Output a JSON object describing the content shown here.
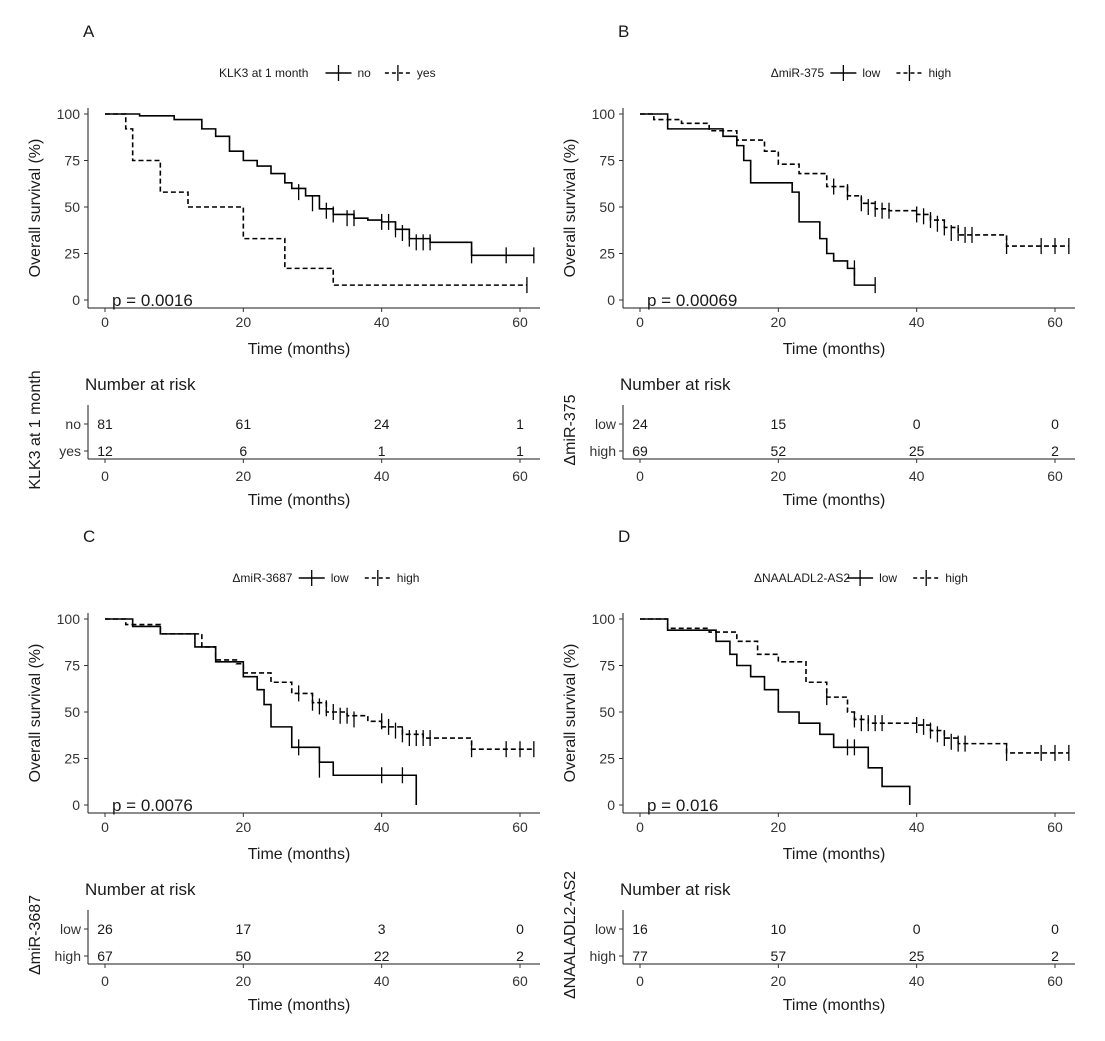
{
  "chart_data": [
    {
      "type": "line",
      "panel": "A",
      "legend_title": "KLK3 at 1 month",
      "strata_title": "KLK3 at 1 month",
      "xlabel": "Time (months)",
      "ylabel": "Overall survival (%)",
      "xlim": [
        0,
        62
      ],
      "ylim": [
        0,
        100
      ],
      "xticks": [
        0,
        20,
        40,
        60
      ],
      "yticks": [
        0,
        25,
        50,
        75,
        100
      ],
      "pvalue": "p = 0.0016",
      "risk_title": "Number at risk",
      "risk_xlabel": "Time (months)",
      "series": [
        {
          "name": "no",
          "dash": "solid",
          "x": [
            0,
            5,
            10,
            14,
            16,
            18,
            20,
            22,
            24,
            26,
            27,
            29,
            31,
            33,
            36,
            38,
            40,
            42,
            44,
            47,
            53,
            62
          ],
          "y": [
            100,
            99,
            97,
            92,
            88,
            80,
            75,
            72,
            68,
            63,
            60,
            56,
            49,
            46,
            44,
            43,
            42,
            38,
            33,
            31,
            24,
            24
          ],
          "censor_x": [
            28,
            30,
            32,
            33,
            35,
            36,
            40,
            41,
            42,
            43,
            44,
            45,
            46,
            47,
            53,
            58,
            62
          ],
          "censor_y": [
            58,
            52,
            48,
            46,
            44,
            44,
            42,
            42,
            38,
            36,
            33,
            31,
            31,
            31,
            24,
            24,
            24
          ]
        },
        {
          "name": "yes",
          "dash": "dashed",
          "x": [
            0,
            3,
            4,
            8,
            12,
            20,
            26,
            33,
            61
          ],
          "y": [
            100,
            92,
            75,
            58,
            50,
            33,
            17,
            8,
            8
          ],
          "censor_x": [
            61
          ],
          "censor_y": [
            8
          ]
        }
      ],
      "risk_rows": [
        {
          "label": "no",
          "values": [
            81,
            61,
            24,
            1
          ]
        },
        {
          "label": "yes",
          "values": [
            12,
            6,
            1,
            1
          ]
        }
      ]
    },
    {
      "type": "line",
      "panel": "B",
      "legend_title": "ΔmiR-375",
      "strata_title": "ΔmiR-375",
      "xlabel": "Time (months)",
      "ylabel": "Overall survival (%)",
      "xlim": [
        0,
        62
      ],
      "ylim": [
        0,
        100
      ],
      "xticks": [
        0,
        20,
        40,
        60
      ],
      "yticks": [
        0,
        25,
        50,
        75,
        100
      ],
      "pvalue": "p = 0.00069",
      "risk_title": "Number at risk",
      "risk_xlabel": "Time (months)",
      "series": [
        {
          "name": "low",
          "dash": "solid",
          "x": [
            0,
            4,
            12,
            14,
            15,
            16,
            22,
            23,
            26,
            27,
            28,
            30,
            31,
            34
          ],
          "y": [
            100,
            92,
            88,
            83,
            75,
            63,
            58,
            42,
            33,
            25,
            21,
            17,
            8,
            8
          ],
          "censor_x": [
            31,
            34
          ],
          "censor_y": [
            17,
            8
          ]
        },
        {
          "name": "high",
          "dash": "dashed",
          "x": [
            0,
            2,
            6,
            10,
            14,
            18,
            20,
            23,
            27,
            30,
            32,
            34,
            36,
            40,
            42,
            44,
            46,
            53,
            62
          ],
          "y": [
            100,
            97,
            95,
            91,
            86,
            80,
            73,
            68,
            61,
            56,
            52,
            49,
            48,
            46,
            43,
            39,
            35,
            29,
            29
          ],
          "censor_x": [
            28,
            30,
            32,
            33,
            34,
            35,
            36,
            40,
            41,
            42,
            43,
            44,
            45,
            46,
            47,
            48,
            53,
            58,
            60,
            62
          ],
          "censor_y": [
            61,
            58,
            52,
            50,
            49,
            48,
            48,
            46,
            45,
            43,
            41,
            39,
            36,
            36,
            35,
            35,
            29,
            29,
            29,
            29
          ]
        }
      ],
      "risk_rows": [
        {
          "label": "low",
          "values": [
            24,
            15,
            0,
            0
          ]
        },
        {
          "label": "high",
          "values": [
            69,
            52,
            25,
            2
          ]
        }
      ]
    },
    {
      "type": "line",
      "panel": "C",
      "legend_title": "ΔmiR-3687",
      "strata_title": "ΔmiR-3687",
      "xlabel": "Time (months)",
      "ylabel": "Overall survival (%)",
      "xlim": [
        0,
        62
      ],
      "ylim": [
        0,
        100
      ],
      "xticks": [
        0,
        20,
        40,
        60
      ],
      "yticks": [
        0,
        25,
        50,
        75,
        100
      ],
      "pvalue": "p = 0.0076",
      "risk_title": "Number at risk",
      "risk_xlabel": "Time (months)",
      "series": [
        {
          "name": "low",
          "dash": "solid",
          "x": [
            0,
            4,
            8,
            13,
            16,
            20,
            22,
            23,
            24,
            27,
            31,
            33,
            45
          ],
          "y": [
            100,
            96,
            92,
            85,
            77,
            69,
            62,
            54,
            42,
            31,
            23,
            16,
            0
          ],
          "censor_x": [
            28,
            31,
            40,
            43
          ],
          "censor_y": [
            31,
            19,
            16,
            16
          ]
        },
        {
          "name": "high",
          "dash": "dashed",
          "x": [
            0,
            3,
            8,
            14,
            16,
            19,
            20,
            24,
            27,
            30,
            32,
            35,
            38,
            40,
            43,
            46,
            53,
            62
          ],
          "y": [
            100,
            97,
            92,
            85,
            78,
            76,
            71,
            66,
            60,
            55,
            50,
            48,
            45,
            42,
            38,
            36,
            30,
            30
          ],
          "censor_x": [
            28,
            30,
            31,
            32,
            33,
            34,
            35,
            36,
            40,
            41,
            42,
            43,
            44,
            45,
            46,
            47,
            53,
            58,
            60,
            62
          ],
          "censor_y": [
            60,
            55,
            53,
            52,
            50,
            48,
            48,
            46,
            45,
            42,
            40,
            38,
            36,
            36,
            36,
            36,
            30,
            30,
            30,
            30
          ]
        }
      ],
      "risk_rows": [
        {
          "label": "low",
          "values": [
            26,
            17,
            3,
            0
          ]
        },
        {
          "label": "high",
          "values": [
            67,
            50,
            22,
            2
          ]
        }
      ]
    },
    {
      "type": "line",
      "panel": "D",
      "legend_title": "ΔNAALADL2-AS2",
      "strata_title": "ΔNAALADL2-AS2",
      "xlabel": "Time (months)",
      "ylabel": "Overall survival (%)",
      "xlim": [
        0,
        62
      ],
      "ylim": [
        0,
        100
      ],
      "xticks": [
        0,
        20,
        40,
        60
      ],
      "yticks": [
        0,
        25,
        50,
        75,
        100
      ],
      "pvalue": "p = 0.016",
      "risk_title": "Number at risk",
      "risk_xlabel": "Time (months)",
      "series": [
        {
          "name": "low",
          "dash": "solid",
          "x": [
            0,
            4,
            11,
            13,
            14,
            16,
            18,
            20,
            23,
            26,
            28,
            33,
            35,
            39
          ],
          "y": [
            100,
            94,
            88,
            81,
            75,
            69,
            62,
            50,
            44,
            38,
            31,
            20,
            10,
            0
          ],
          "censor_x": [
            30,
            31
          ],
          "censor_y": [
            31,
            31
          ]
        },
        {
          "name": "high",
          "dash": "dashed",
          "x": [
            0,
            4,
            10,
            14,
            17,
            20,
            24,
            27,
            30,
            31,
            33,
            40,
            42,
            44,
            46,
            53,
            62
          ],
          "y": [
            100,
            95,
            93,
            88,
            81,
            77,
            66,
            58,
            50,
            46,
            44,
            43,
            40,
            36,
            33,
            28,
            28
          ],
          "censor_x": [
            27,
            31,
            32,
            33,
            34,
            35,
            40,
            41,
            42,
            43,
            44,
            45,
            46,
            47,
            53,
            58,
            60,
            62
          ],
          "censor_y": [
            58,
            46,
            44,
            44,
            44,
            44,
            43,
            42,
            40,
            38,
            36,
            34,
            33,
            33,
            28,
            28,
            28,
            28
          ]
        }
      ],
      "risk_rows": [
        {
          "label": "low",
          "values": [
            16,
            10,
            0,
            0
          ]
        },
        {
          "label": "high",
          "values": [
            77,
            57,
            25,
            2
          ]
        }
      ]
    }
  ]
}
